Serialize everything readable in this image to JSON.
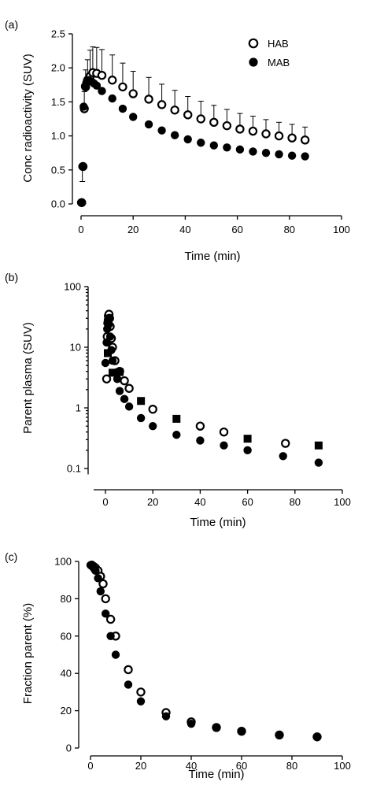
{
  "chart_data": [
    {
      "panel_label": "(a)",
      "type": "scatter",
      "xlabel": "Time (min)",
      "ylabel": "Conc radioactivity (SUV)",
      "xlim": [
        0,
        100
      ],
      "ylim": [
        0,
        2.5
      ],
      "x_ticks": [
        0,
        20,
        40,
        60,
        80,
        100
      ],
      "y_ticks": [
        0.0,
        0.5,
        1.0,
        1.5,
        2.0,
        2.5
      ],
      "y_tick_labels": [
        "0.0",
        "0.5",
        "1.0",
        "1.5",
        "2.0",
        "2.5"
      ],
      "legend": {
        "placement": "top-right",
        "entries": [
          "HAB",
          "MAB"
        ]
      },
      "series": [
        {
          "name": "HAB",
          "marker": "open-circle",
          "points": [
            {
              "x": 0.25,
              "y": 0.02
            },
            {
              "x": 0.75,
              "y": 0.55
            },
            {
              "x": 1.25,
              "y": 1.4,
              "err": 0.25
            },
            {
              "x": 1.75,
              "y": 1.72,
              "err": 0.25
            },
            {
              "x": 2.5,
              "y": 1.82,
              "err": 0.3
            },
            {
              "x": 3.5,
              "y": 1.88,
              "err": 0.38
            },
            {
              "x": 4.5,
              "y": 1.93,
              "err": 0.38
            },
            {
              "x": 6,
              "y": 1.92,
              "err": 0.38
            },
            {
              "x": 8,
              "y": 1.89,
              "err": 0.38
            },
            {
              "x": 12,
              "y": 1.82,
              "err": 0.37
            },
            {
              "x": 16,
              "y": 1.72,
              "err": 0.35
            },
            {
              "x": 20,
              "y": 1.62,
              "err": 0.33
            },
            {
              "x": 26,
              "y": 1.54,
              "err": 0.32
            },
            {
              "x": 31,
              "y": 1.46,
              "err": 0.3
            },
            {
              "x": 36,
              "y": 1.38,
              "err": 0.29
            },
            {
              "x": 41,
              "y": 1.31,
              "err": 0.27
            },
            {
              "x": 46,
              "y": 1.25,
              "err": 0.26
            },
            {
              "x": 51,
              "y": 1.2,
              "err": 0.25
            },
            {
              "x": 56,
              "y": 1.15,
              "err": 0.24
            },
            {
              "x": 61,
              "y": 1.1,
              "err": 0.23
            },
            {
              "x": 66,
              "y": 1.07,
              "err": 0.22
            },
            {
              "x": 71,
              "y": 1.03,
              "err": 0.21
            },
            {
              "x": 76,
              "y": 1.0,
              "err": 0.2
            },
            {
              "x": 81,
              "y": 0.97,
              "err": 0.2
            },
            {
              "x": 86,
              "y": 0.94,
              "err": 0.19
            }
          ]
        },
        {
          "name": "MAB",
          "marker": "filled-circle",
          "points": [
            {
              "x": 0,
              "y": 0.02
            },
            {
              "x": 0.5,
              "y": 0.55,
              "err": 0.22
            },
            {
              "x": 1,
              "y": 1.43
            },
            {
              "x": 1.5,
              "y": 1.73
            },
            {
              "x": 2,
              "y": 1.78
            },
            {
              "x": 3,
              "y": 1.82
            },
            {
              "x": 4,
              "y": 1.8
            },
            {
              "x": 5,
              "y": 1.77
            },
            {
              "x": 6,
              "y": 1.74
            },
            {
              "x": 8,
              "y": 1.66
            },
            {
              "x": 12,
              "y": 1.55
            },
            {
              "x": 16,
              "y": 1.4
            },
            {
              "x": 20,
              "y": 1.28
            },
            {
              "x": 26,
              "y": 1.17
            },
            {
              "x": 31,
              "y": 1.08
            },
            {
              "x": 36,
              "y": 1.01
            },
            {
              "x": 41,
              "y": 0.95
            },
            {
              "x": 46,
              "y": 0.9
            },
            {
              "x": 51,
              "y": 0.86
            },
            {
              "x": 56,
              "y": 0.83
            },
            {
              "x": 61,
              "y": 0.8
            },
            {
              "x": 66,
              "y": 0.77
            },
            {
              "x": 71,
              "y": 0.75
            },
            {
              "x": 76,
              "y": 0.73
            },
            {
              "x": 81,
              "y": 0.71
            },
            {
              "x": 86,
              "y": 0.7
            }
          ]
        }
      ]
    },
    {
      "panel_label": "(b)",
      "type": "scatter",
      "xlabel": "Time (min)",
      "ylabel": "Parent plasma (SUV)",
      "xlim": [
        -5,
        100
      ],
      "ylim": [
        0.08,
        100
      ],
      "y_scale": "log",
      "x_ticks": [
        0,
        20,
        40,
        60,
        80,
        100
      ],
      "y_ticks": [
        0.1,
        1,
        10,
        100
      ],
      "y_tick_labels": [
        "0.1",
        "1",
        "10",
        "100"
      ],
      "series": [
        {
          "marker": "open-circle",
          "points": [
            {
              "x": 0.5,
              "y": 3
            },
            {
              "x": 0.75,
              "y": 15
            },
            {
              "x": 1,
              "y": 25
            },
            {
              "x": 1.25,
              "y": 33
            },
            {
              "x": 1.5,
              "y": 35
            },
            {
              "x": 1.75,
              "y": 30
            },
            {
              "x": 2,
              "y": 22
            },
            {
              "x": 2.5,
              "y": 14
            },
            {
              "x": 3,
              "y": 10
            },
            {
              "x": 4,
              "y": 6
            },
            {
              "x": 6,
              "y": 4
            },
            {
              "x": 8,
              "y": 2.8
            },
            {
              "x": 10,
              "y": 2.1
            },
            {
              "x": 20,
              "y": 0.95
            },
            {
              "x": 40,
              "y": 0.5
            },
            {
              "x": 50,
              "y": 0.4
            },
            {
              "x": 76,
              "y": 0.26
            }
          ]
        },
        {
          "marker": "filled-circle",
          "points": [
            {
              "x": 0,
              "y": 5.5
            },
            {
              "x": 0.5,
              "y": 12
            },
            {
              "x": 0.75,
              "y": 20
            },
            {
              "x": 1,
              "y": 28
            },
            {
              "x": 1.25,
              "y": 30
            },
            {
              "x": 1.5,
              "y": 24
            },
            {
              "x": 2,
              "y": 15
            },
            {
              "x": 2.5,
              "y": 9
            },
            {
              "x": 3,
              "y": 6
            },
            {
              "x": 4,
              "y": 3.8
            },
            {
              "x": 5,
              "y": 3
            },
            {
              "x": 6,
              "y": 1.9
            },
            {
              "x": 8,
              "y": 1.4
            },
            {
              "x": 10,
              "y": 1.05
            },
            {
              "x": 15,
              "y": 0.68
            },
            {
              "x": 20,
              "y": 0.5
            },
            {
              "x": 30,
              "y": 0.36
            },
            {
              "x": 40,
              "y": 0.29
            },
            {
              "x": 50,
              "y": 0.24
            },
            {
              "x": 60,
              "y": 0.2
            },
            {
              "x": 75,
              "y": 0.16
            },
            {
              "x": 90,
              "y": 0.125
            }
          ]
        },
        {
          "marker": "filled-square",
          "points": [
            {
              "x": 1,
              "y": 8
            },
            {
              "x": 3,
              "y": 3.8
            },
            {
              "x": 6,
              "y": 3.9
            },
            {
              "x": 15,
              "y": 1.3
            },
            {
              "x": 30,
              "y": 0.66
            },
            {
              "x": 60,
              "y": 0.31
            },
            {
              "x": 90,
              "y": 0.24
            }
          ]
        }
      ]
    },
    {
      "panel_label": "(c)",
      "type": "scatter",
      "xlabel": "Time (min)",
      "ylabel": "Fraction parent (%)",
      "xlim": [
        0,
        100
      ],
      "ylim": [
        0,
        100
      ],
      "x_ticks": [
        0,
        20,
        40,
        60,
        80,
        100
      ],
      "y_ticks": [
        0,
        20,
        40,
        60,
        80,
        100
      ],
      "y_tick_labels": [
        "0",
        "20",
        "40",
        "60",
        "80",
        "100"
      ],
      "series": [
        {
          "marker": "open-circle",
          "points": [
            {
              "x": 0.5,
              "y": 98
            },
            {
              "x": 1,
              "y": 97.5
            },
            {
              "x": 1.5,
              "y": 97
            },
            {
              "x": 2,
              "y": 96.5
            },
            {
              "x": 3,
              "y": 95
            },
            {
              "x": 4,
              "y": 92
            },
            {
              "x": 5,
              "y": 88
            },
            {
              "x": 6,
              "y": 80
            },
            {
              "x": 8,
              "y": 69
            },
            {
              "x": 10,
              "y": 60
            },
            {
              "x": 15,
              "y": 42
            },
            {
              "x": 20,
              "y": 30
            },
            {
              "x": 30,
              "y": 19
            },
            {
              "x": 40,
              "y": 14
            },
            {
              "x": 50,
              "y": 11
            },
            {
              "x": 60,
              "y": 9
            },
            {
              "x": 75,
              "y": 7
            },
            {
              "x": 90,
              "y": 6
            }
          ]
        },
        {
          "marker": "filled-circle",
          "points": [
            {
              "x": 0,
              "y": 98
            },
            {
              "x": 0.5,
              "y": 97.5
            },
            {
              "x": 1,
              "y": 97
            },
            {
              "x": 1.5,
              "y": 96
            },
            {
              "x": 2,
              "y": 95
            },
            {
              "x": 3,
              "y": 91
            },
            {
              "x": 4,
              "y": 84
            },
            {
              "x": 6,
              "y": 72
            },
            {
              "x": 8,
              "y": 60
            },
            {
              "x": 10,
              "y": 50
            },
            {
              "x": 15,
              "y": 34
            },
            {
              "x": 20,
              "y": 25
            },
            {
              "x": 30,
              "y": 17
            },
            {
              "x": 40,
              "y": 13
            },
            {
              "x": 50,
              "y": 11
            },
            {
              "x": 60,
              "y": 9
            },
            {
              "x": 75,
              "y": 7
            },
            {
              "x": 90,
              "y": 6
            }
          ]
        }
      ]
    }
  ]
}
